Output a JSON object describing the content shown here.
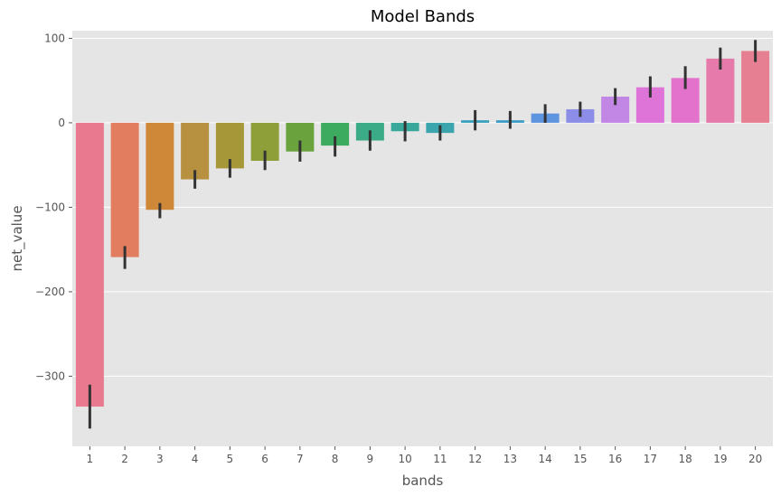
{
  "chart_data": {
    "type": "bar",
    "title": "Model Bands",
    "xlabel": "bands",
    "ylabel": "net_value",
    "categories": [
      "1",
      "2",
      "3",
      "4",
      "5",
      "6",
      "7",
      "8",
      "9",
      "10",
      "11",
      "12",
      "13",
      "14",
      "15",
      "16",
      "17",
      "18",
      "19",
      "20"
    ],
    "values": [
      -336,
      -159,
      -103,
      -67,
      -54,
      -45,
      -34,
      -27,
      -21,
      -10,
      -12,
      3,
      3,
      11,
      16,
      31,
      42,
      53,
      76,
      85
    ],
    "error_low": [
      -362,
      -173,
      -113,
      -78,
      -65,
      -56,
      -46,
      -40,
      -33,
      -22,
      -21,
      -9,
      -7,
      0,
      7,
      21,
      30,
      40,
      63,
      72
    ],
    "error_high": [
      -310,
      -146,
      -95,
      -56,
      -43,
      -33,
      -21,
      -16,
      -9,
      2,
      -3,
      15,
      14,
      22,
      25,
      41,
      55,
      67,
      89,
      98
    ],
    "colors": [
      "#e8798e",
      "#e37d5f",
      "#cf8738",
      "#b7913f",
      "#a69839",
      "#8e9e38",
      "#6aa33d",
      "#3dab5f",
      "#3aab86",
      "#38a89b",
      "#3ba5ad",
      "#3ba1bd",
      "#3c9dc6",
      "#5f94de",
      "#8b8de6",
      "#c286e5",
      "#de73d8",
      "#e272cc",
      "#e67bab",
      "#e77f92"
    ],
    "yticks": [
      100,
      0,
      -100,
      -200,
      -300
    ],
    "ytick_labels": [
      "100",
      "0",
      "−100",
      "−200",
      "−300"
    ],
    "ylim": [
      -383,
      109
    ],
    "grid": true,
    "style": "ggplot",
    "background": "#e5e5e5",
    "gridline_color": "#ffffff",
    "errorbar_color": "#333333"
  }
}
